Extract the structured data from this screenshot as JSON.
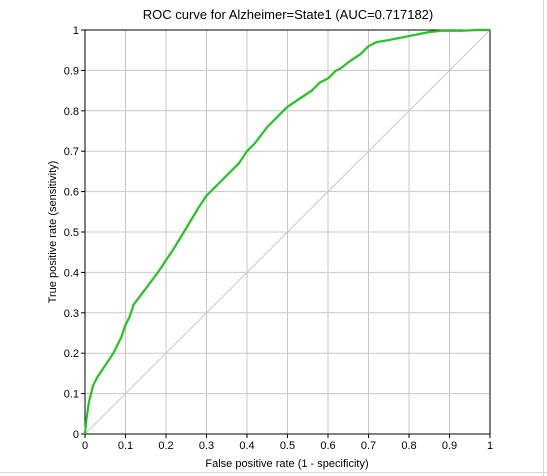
{
  "chart_data": {
    "type": "line",
    "title": "ROC curve for Alzheimer=State1 (AUC=0.717182)",
    "xlabel": "False positive rate (1 - specificity)",
    "ylabel": "True positive rate (sensitivity)",
    "xlim": [
      0,
      1
    ],
    "ylim": [
      0,
      1
    ],
    "x_ticks": [
      "0",
      "0.1",
      "0.2",
      "0.3",
      "0.4",
      "0.5",
      "0.6",
      "0.7",
      "0.8",
      "0.9",
      "1"
    ],
    "y_ticks": [
      "0",
      "0.1",
      "0.2",
      "0.3",
      "0.4",
      "0.5",
      "0.6",
      "0.7",
      "0.8",
      "0.9",
      "1"
    ],
    "grid": true,
    "legend": "none",
    "colors": {
      "roc_curve": "#22c41e",
      "diagonal": "#c8c8c8",
      "grid": "#c8c8c8",
      "axes": "#000000"
    },
    "series": [
      {
        "x": [
          0,
          0.004,
          0.01,
          0.02,
          0.03,
          0.05,
          0.07,
          0.09,
          0.1,
          0.11,
          0.12,
          0.15,
          0.18,
          0.2,
          0.22,
          0.25,
          0.28,
          0.3,
          0.32,
          0.33,
          0.35,
          0.38,
          0.4,
          0.42,
          0.45,
          0.48,
          0.5,
          0.53,
          0.56,
          0.58,
          0.6,
          0.62,
          0.63,
          0.65,
          0.68,
          0.7,
          0.72,
          0.75,
          0.8,
          0.85,
          0.88,
          0.9,
          0.93,
          0.95,
          0.97,
          1
        ],
        "y": [
          0,
          0.04,
          0.08,
          0.12,
          0.14,
          0.17,
          0.2,
          0.24,
          0.27,
          0.29,
          0.32,
          0.36,
          0.4,
          0.43,
          0.46,
          0.51,
          0.56,
          0.59,
          0.61,
          0.62,
          0.64,
          0.67,
          0.7,
          0.72,
          0.76,
          0.79,
          0.81,
          0.83,
          0.85,
          0.87,
          0.88,
          0.9,
          0.904,
          0.92,
          0.94,
          0.96,
          0.97,
          0.975,
          0.985,
          0.995,
          0.998,
          0.998,
          0.998,
          0.999,
          1,
          1
        ]
      }
    ]
  }
}
